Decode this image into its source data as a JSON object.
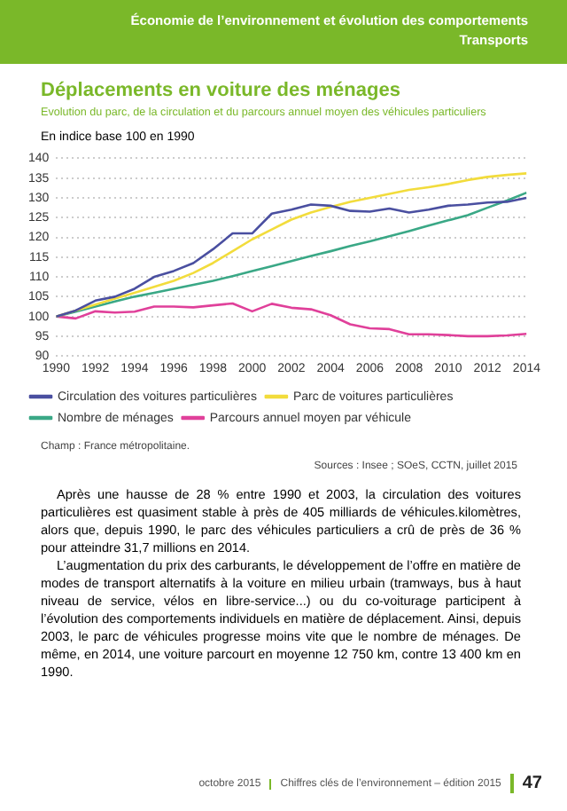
{
  "chart_data": {
    "type": "line",
    "title": "Déplacements en voiture des ménages",
    "subtitle": "Evolution du parc, de la circulation et du parcours annuel moyen des véhicules particuliers",
    "ylabel": "En indice base 100 en 1990",
    "x": [
      1990,
      1991,
      1992,
      1993,
      1994,
      1995,
      1996,
      1997,
      1998,
      1999,
      2000,
      2001,
      2002,
      2003,
      2004,
      2005,
      2006,
      2007,
      2008,
      2009,
      2010,
      2011,
      2012,
      2013,
      2014
    ],
    "series": [
      {
        "name": "Circulation des voitures particulières",
        "color": "#4a4fa0",
        "values": [
          100,
          101.5,
          104,
          105,
          107,
          110,
          111.5,
          113.5,
          117,
          121,
          121,
          126,
          127,
          128.3,
          128,
          126.7,
          126.5,
          127.3,
          126.3,
          127,
          128,
          128.3,
          128.8,
          129,
          130
        ]
      },
      {
        "name": "Parc de voitures particulières",
        "color": "#f2dc3c",
        "values": [
          100,
          101.5,
          103,
          104.5,
          106,
          107.5,
          109,
          111,
          113.5,
          116.5,
          119.5,
          122,
          124.5,
          126.3,
          127.7,
          129,
          130,
          131,
          132,
          132.7,
          133.5,
          134.5,
          135.3,
          135.8,
          136.2
        ]
      },
      {
        "name": "Nombre de ménages",
        "color": "#3aa886",
        "values": [
          100,
          101.2,
          102.5,
          103.8,
          105,
          106,
          107,
          108,
          109,
          110.2,
          111.5,
          112.7,
          114,
          115.3,
          116.5,
          117.8,
          119,
          120.3,
          121.6,
          123,
          124.3,
          125.6,
          127.5,
          129.3,
          131.3
        ]
      },
      {
        "name": "Parcours annuel moyen par véhicule",
        "color": "#e0409a",
        "values": [
          100,
          99.5,
          101.3,
          101,
          101.2,
          102.5,
          102.5,
          102.3,
          102.8,
          103.3,
          101.3,
          103.2,
          102.2,
          101.8,
          100.3,
          98,
          97,
          96.8,
          95.5,
          95.5,
          95.3,
          95,
          95,
          95.2,
          95.6
        ]
      }
    ],
    "xlim": [
      1990,
      2014
    ],
    "xticks": [
      1990,
      1992,
      1994,
      1996,
      1998,
      2000,
      2002,
      2004,
      2006,
      2008,
      2010,
      2012,
      2014
    ],
    "ylim": [
      90,
      140
    ],
    "yticks": [
      90,
      95,
      100,
      105,
      110,
      115,
      120,
      125,
      130,
      135,
      140
    ],
    "grid": "y",
    "legend": "bottom",
    "marker": "none",
    "line_style": "solid",
    "annotations": [
      "Économie de l’environnement et évolution des comportements",
      "Transports",
      "Champ : France métropolitaine.",
      "Sources : Insee ; SOeS, CCTN, juillet 2015",
      "Après une hausse de 28 % entre 1990 et 2003, la circulation des voitures particulières est quasiment stable à près de 405 milliards de véhicules.kilomètres, alors que, depuis 1990, le parc des véhicules particuliers a crû de près de 36 % pour atteindre 31,7 millions en 2014.",
      "L’augmentation du prix des carburants, le développement de l’offre en matière de modes de transport alternatifs à la voiture en milieu urbain (tramways, bus à haut niveau de service, vélos en libre-service...) ou du co-voiturage participent à l’évolution des comportements individuels en matière de déplacement. Ainsi, depuis 2003, le parc de véhicules progresse moins vite que le nombre de ménages. De même, en 2014, une voiture parcourt en moyenne 12 750 km, contre 13 400 km en 1990.",
      "octobre 2015",
      "Chiffres clés de l’environnement – édition 2015",
      "47"
    ]
  }
}
